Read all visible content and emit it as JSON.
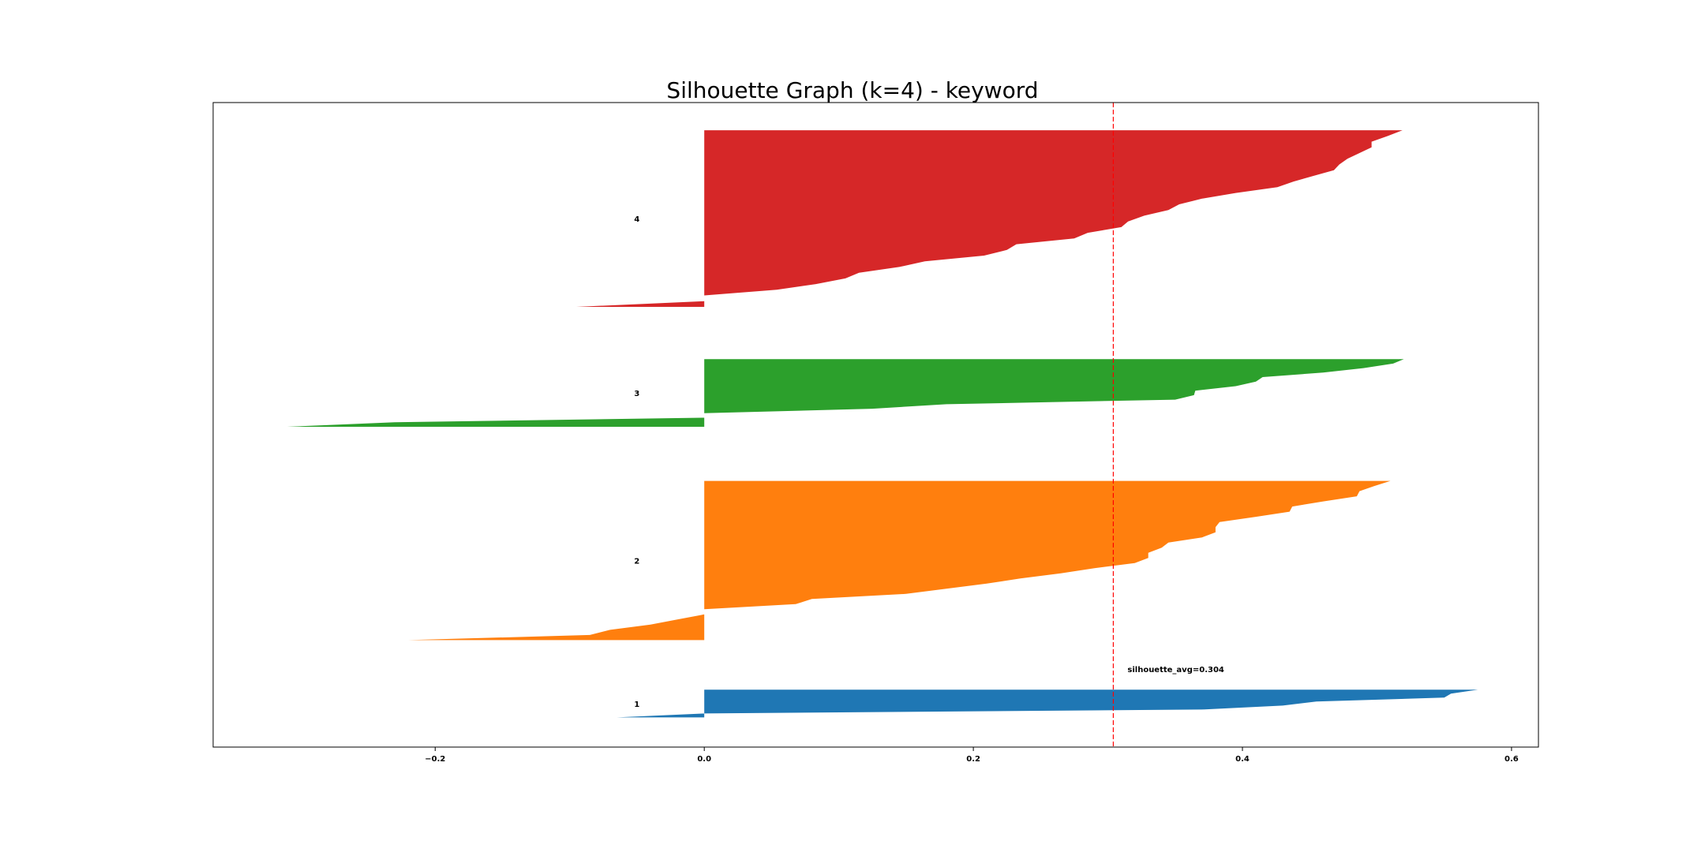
{
  "chart_data": {
    "type": "area",
    "title": "Silhouette Graph (k=4) - keyword",
    "xlabel": "",
    "ylabel": "",
    "xlim": [
      -0.365,
      0.62
    ],
    "ylim": [
      0,
      100
    ],
    "xticks": [
      -0.2,
      0.0,
      0.2,
      0.4,
      0.6
    ],
    "xtick_labels": [
      "−0.2",
      "0.0",
      "0.2",
      "0.4",
      "0.6"
    ],
    "grid": false,
    "average_line": {
      "value": 0.304,
      "label": "silhouette_avg=0.304",
      "color": "#ff0000",
      "style": "dashed"
    },
    "series": [
      {
        "name": "1",
        "color": "#1f77b4",
        "y_range": [
          4.6,
          8.9
        ],
        "x": [
          -0.065,
          0.0,
          0.37,
          0.43,
          0.455,
          0.55,
          0.555,
          0.575
        ]
      },
      {
        "name": "2",
        "color": "#ff7f0e",
        "y_range": [
          16.6,
          41.3
        ],
        "x": [
          -0.22,
          -0.085,
          -0.07,
          -0.04,
          -0.02,
          0.0,
          0.0,
          0.068,
          0.08,
          0.15,
          0.18,
          0.21,
          0.235,
          0.265,
          0.29,
          0.32,
          0.33,
          0.33,
          0.34,
          0.345,
          0.37,
          0.38,
          0.38,
          0.383,
          0.41,
          0.435,
          0.437,
          0.46,
          0.485,
          0.487,
          0.498,
          0.51
        ]
      },
      {
        "name": "3",
        "color": "#2ca02c",
        "y_range": [
          49.7,
          60.2
        ],
        "x": [
          -0.31,
          -0.23,
          0.0,
          0.0,
          0.125,
          0.18,
          0.35,
          0.364,
          0.365,
          0.395,
          0.41,
          0.415,
          0.46,
          0.49,
          0.512,
          0.52
        ]
      },
      {
        "name": "4",
        "color": "#d62728",
        "y_range": [
          68.3,
          95.7
        ],
        "x": [
          -0.095,
          -0.0,
          -0.0,
          0.054,
          0.083,
          0.105,
          0.115,
          0.145,
          0.164,
          0.208,
          0.225,
          0.232,
          0.275,
          0.285,
          0.31,
          0.315,
          0.327,
          0.345,
          0.353,
          0.37,
          0.395,
          0.426,
          0.438,
          0.453,
          0.468,
          0.472,
          0.478,
          0.487,
          0.496,
          0.496,
          0.508,
          0.519
        ]
      }
    ]
  }
}
